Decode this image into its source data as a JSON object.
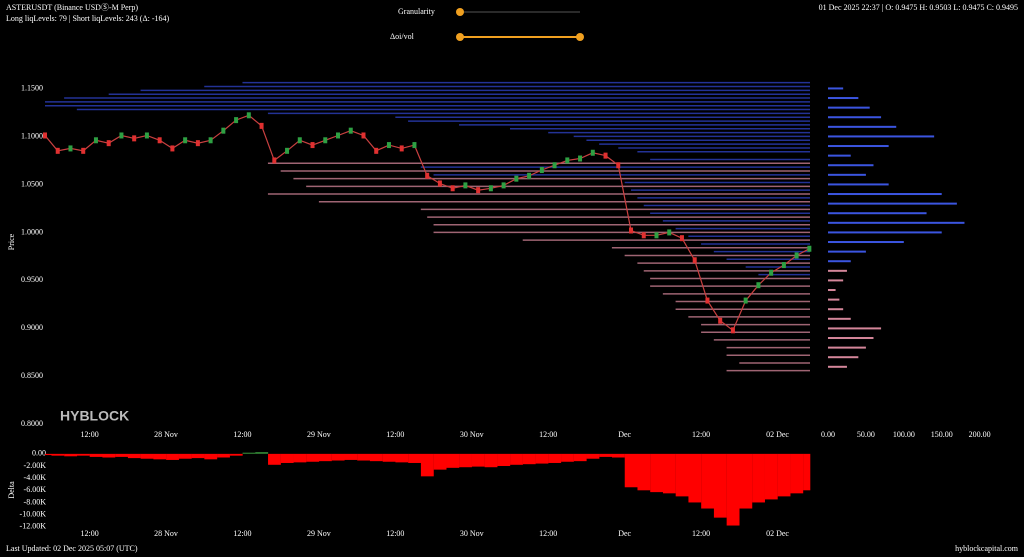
{
  "header": {
    "symbol": "ASTERUSDT (Binance USDⓈ-M Perp)",
    "levels": "Long liqLevels: 79 | Short liqLevels: 243 (Δ: -164)",
    "ohlc": "01 Dec 2025 22:37 | O: 0.9475 H: 0.9503 L: 0.9475 C: 0.9495"
  },
  "controls": {
    "granularity": "Granularity",
    "doi_vol": "Δoi/vol"
  },
  "footer": {
    "updated": "Last Updated: 02 Dec 2025 05:07 (UTC)",
    "site": "hyblockcapital.com"
  },
  "chart_data": [
    {
      "type": "line",
      "y_label": "Price",
      "watermark": "HYBLOCK",
      "x": [
        5,
        7,
        9,
        11,
        13,
        15,
        17,
        19,
        21,
        23,
        25,
        27,
        29,
        31,
        33,
        35,
        37,
        39,
        41,
        43,
        45,
        47,
        49,
        51,
        53,
        55,
        57,
        59,
        61,
        63,
        65,
        67,
        69,
        71,
        73,
        75,
        77,
        79,
        81,
        83,
        85,
        87,
        89,
        91,
        93,
        95,
        97,
        99,
        101,
        103,
        105,
        107,
        109,
        111,
        113,
        115,
        117,
        119,
        121,
        123,
        125
      ],
      "values": [
        1.101,
        1.085,
        1.0875,
        1.085,
        1.096,
        1.093,
        1.101,
        1.098,
        1.101,
        1.096,
        1.0875,
        1.096,
        1.093,
        1.096,
        1.106,
        1.117,
        1.122,
        1.111,
        1.075,
        1.085,
        1.096,
        1.091,
        1.096,
        1.101,
        1.106,
        1.101,
        1.085,
        1.091,
        1.0875,
        1.091,
        1.059,
        1.051,
        1.046,
        1.049,
        1.044,
        1.046,
        1.049,
        1.056,
        1.059,
        1.065,
        1.07,
        1.075,
        1.077,
        1.083,
        1.08,
        1.07,
        1.002,
        0.997,
        0.997,
        1.0,
        0.994,
        0.971,
        0.929,
        0.908,
        0.898,
        0.929,
        0.945,
        0.958,
        0.966,
        0.976,
        0.983
      ],
      "up_color": "#2ea043",
      "down_color": "#e03030",
      "xlim": [
        5,
        125.1
      ],
      "xticks": [
        {
          "value": 12,
          "label": "12:00"
        },
        {
          "value": 24,
          "label": "28 Nov"
        },
        {
          "value": 36,
          "label": "12:00"
        },
        {
          "value": 48,
          "label": "29 Nov"
        },
        {
          "value": 60,
          "label": "12:00"
        },
        {
          "value": 72,
          "label": "30 Nov"
        },
        {
          "value": 84,
          "label": "12:00"
        },
        {
          "value": 96,
          "label": "Dec"
        },
        {
          "value": 108,
          "label": "12:00"
        },
        {
          "value": 120,
          "label": "02 Dec"
        }
      ],
      "ylim": [
        0.79,
        1.164
      ],
      "yticks": [
        {
          "value": 0.8,
          "label": "0.8000"
        },
        {
          "value": 0.85,
          "label": "0.8500"
        },
        {
          "value": 0.9,
          "label": "0.9000"
        },
        {
          "value": 0.95,
          "label": "0.9500"
        },
        {
          "value": 1.0,
          "label": "1.0000"
        },
        {
          "value": 1.05,
          "label": "1.0500"
        },
        {
          "value": 1.1,
          "label": "1.1000"
        },
        {
          "value": 1.15,
          "label": "1.1500"
        }
      ],
      "short_levels": {
        "color": "#2f43c8",
        "price": [
          1.156,
          1.152,
          1.148,
          1.144,
          1.14,
          1.136,
          1.132,
          1.128,
          1.124,
          1.12,
          1.116,
          1.112,
          1.108,
          1.104,
          1.1,
          1.096,
          1.092,
          1.088,
          1.084,
          1.076,
          1.068,
          1.06,
          1.052,
          1.044,
          1.036,
          1.028,
          1.02,
          1.012,
          1.004,
          0.996,
          0.988,
          0.98,
          0.972,
          0.964,
          0.956
        ],
        "start": [
          36,
          30,
          20,
          15,
          8,
          5,
          5,
          10,
          40,
          60,
          62,
          70,
          78,
          84,
          88,
          90,
          92,
          95,
          98,
          100,
          64,
          66,
          96,
          97,
          98,
          99,
          100,
          102,
          104,
          106,
          108,
          110,
          112,
          115,
          117
        ]
      },
      "long_levels": {
        "color": "#d4869a",
        "price": [
          1.072,
          1.064,
          1.056,
          1.048,
          1.04,
          1.032,
          1.024,
          1.016,
          1.008,
          1.0,
          0.992,
          0.984,
          0.976,
          0.968,
          0.96,
          0.952,
          0.944,
          0.936,
          0.928,
          0.92,
          0.912,
          0.904,
          0.896,
          0.888,
          0.88,
          0.872,
          0.864,
          0.856
        ],
        "start": [
          40,
          42,
          44,
          46,
          40,
          48,
          64,
          65,
          66,
          66,
          80,
          94,
          96,
          98,
          99,
          100,
          100,
          102,
          104,
          104,
          106,
          108,
          108,
          110,
          112,
          112,
          114,
          112
        ]
      }
    },
    {
      "type": "hbar",
      "xlim": [
        0,
        215
      ],
      "xticks": [
        {
          "value": 0,
          "label": "0.00"
        },
        {
          "value": 50,
          "label": "50.00"
        },
        {
          "value": 100,
          "label": "100.00"
        },
        {
          "value": 150,
          "label": "150.00"
        },
        {
          "value": 200,
          "label": "200.00"
        }
      ],
      "series": [
        {
          "color": "#3b55e0",
          "y": [
            1.15,
            1.14,
            1.13,
            1.12,
            1.11,
            1.1,
            1.09,
            1.08,
            1.07,
            1.06,
            1.05,
            1.04,
            1.03,
            1.02,
            1.01,
            1.0,
            0.99,
            0.98,
            0.97
          ],
          "values": [
            20,
            40,
            55,
            70,
            90,
            140,
            80,
            30,
            60,
            50,
            80,
            150,
            170,
            130,
            180,
            150,
            100,
            50,
            30
          ]
        },
        {
          "color": "#d4869a",
          "y": [
            0.96,
            0.95,
            0.94,
            0.93,
            0.92,
            0.91,
            0.9,
            0.89,
            0.88,
            0.87,
            0.86
          ],
          "values": [
            25,
            20,
            10,
            15,
            20,
            30,
            70,
            60,
            50,
            40,
            25
          ]
        }
      ]
    },
    {
      "type": "bar",
      "y_label": "Delta",
      "pos_color": "#2e7d32",
      "neg_color": "#ff0000",
      "x": [
        5,
        7,
        9,
        11,
        13,
        15,
        17,
        19,
        21,
        23,
        25,
        27,
        29,
        31,
        33,
        35,
        37,
        39,
        41,
        43,
        45,
        47,
        49,
        51,
        53,
        55,
        57,
        59,
        61,
        63,
        65,
        67,
        69,
        71,
        73,
        75,
        77,
        79,
        81,
        83,
        85,
        87,
        89,
        91,
        93,
        95,
        97,
        99,
        101,
        103,
        105,
        107,
        109,
        111,
        113,
        115,
        117,
        119,
        121,
        123,
        125
      ],
      "values": [
        -200,
        -300,
        -400,
        -300,
        -500,
        -600,
        -500,
        -700,
        -800,
        -900,
        -1000,
        -800,
        -700,
        -900,
        -600,
        -300,
        200,
        300,
        -1800,
        -1500,
        -1400,
        -1300,
        -1200,
        -1100,
        -1000,
        -1100,
        -1200,
        -1300,
        -1400,
        -1500,
        -3700,
        -2600,
        -2300,
        -2200,
        -2100,
        -2200,
        -2000,
        -1800,
        -1700,
        -1600,
        -1500,
        -1300,
        -1200,
        -800,
        -500,
        -600,
        -5500,
        -6000,
        -6300,
        -6500,
        -7000,
        -8000,
        -9000,
        -10500,
        -11800,
        -9000,
        -8000,
        -7500,
        -7000,
        -6500,
        -6000
      ],
      "xlim": [
        5,
        125.1
      ],
      "xticks": [
        {
          "value": 12,
          "label": "12:00"
        },
        {
          "value": 24,
          "label": "28 Nov"
        },
        {
          "value": 36,
          "label": "12:00"
        },
        {
          "value": 48,
          "label": "29 Nov"
        },
        {
          "value": 60,
          "label": "12:00"
        },
        {
          "value": 72,
          "label": "30 Nov"
        },
        {
          "value": 84,
          "label": "12:00"
        },
        {
          "value": 96,
          "label": "Dec"
        },
        {
          "value": 108,
          "label": "12:00"
        },
        {
          "value": 120,
          "label": "02 Dec"
        }
      ],
      "ylim": [
        -12700,
        800
      ],
      "yticks": [
        {
          "value": 0,
          "label": "0.00"
        },
        {
          "value": -2000,
          "label": "-2.00K"
        },
        {
          "value": -4000,
          "label": "-4.00K"
        },
        {
          "value": -6000,
          "label": "-6.00K"
        },
        {
          "value": -8000,
          "label": "-8.00K"
        },
        {
          "value": -10000,
          "label": "-10.00K"
        },
        {
          "value": -12000,
          "label": "-12.00K"
        }
      ]
    }
  ]
}
